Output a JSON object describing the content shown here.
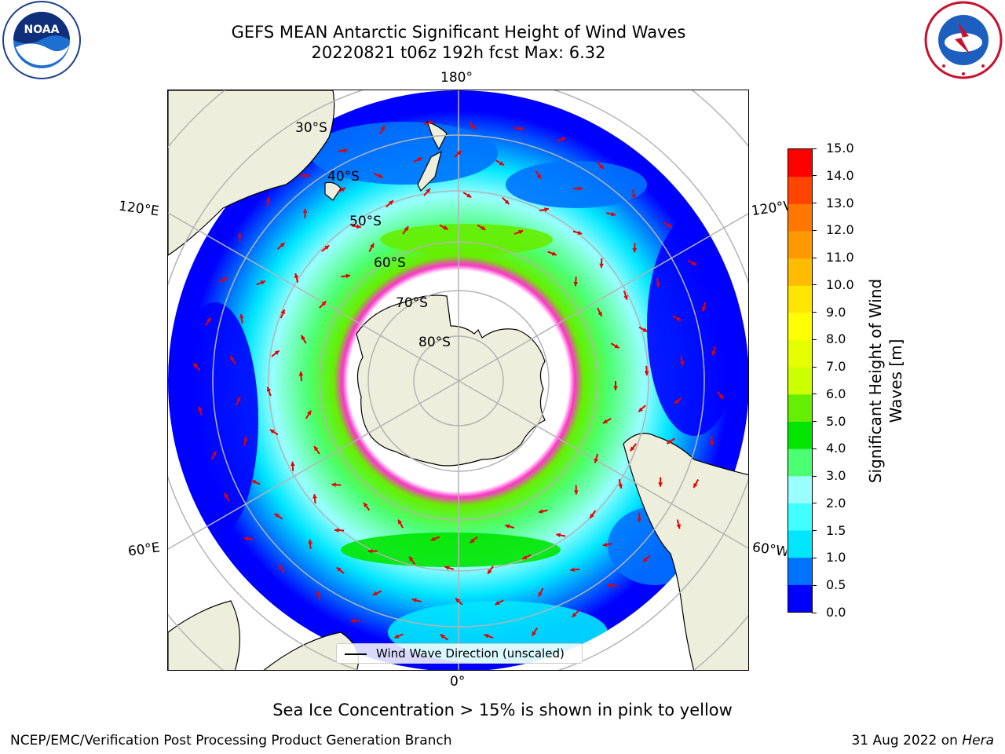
{
  "title": {
    "line1": "GEFS MEAN Antarctic Significant Height of Wind Waves",
    "line2": "20220821 t06z 192h fcst   Max: 6.32"
  },
  "logos": {
    "left": {
      "text": "NOAA",
      "ring_top": "NATIONAL OCEANIC AND ATMOSPHERIC ADMINISTRATION",
      "ring_bottom": "U.S. DEPARTMENT OF COMMERCE"
    },
    "right": {
      "ring_top": "NATIONAL WEATHER SERVICE"
    }
  },
  "map": {
    "projection": "south-polar-stereographic",
    "longitude_labels": {
      "top": "180°",
      "bottom": "0°",
      "left_upper": "120°E",
      "left_lower": "60°E",
      "right_upper": "120°W",
      "right_lower": "60°W"
    },
    "latitude_labels": [
      "30°S",
      "40°S",
      "50°S",
      "60°S",
      "70°S",
      "80°S"
    ],
    "colors": {
      "land": "#eeeedc",
      "ice_free_ocean_missing": "#ffffff",
      "graticule": "#b4b4b4",
      "arrow": "#e60000",
      "sea_ice": "#ff33cc"
    }
  },
  "colorbar": {
    "label": "Significant Height of Wind Waves [m]",
    "label_line1": "Significant Height of Wind",
    "label_line2": "Waves [m]",
    "ticks": [
      "0.0",
      "0.5",
      "1.0",
      "1.5",
      "2.0",
      "3.0",
      "4.0",
      "5.0",
      "6.0",
      "7.0",
      "8.0",
      "9.0",
      "10.0",
      "11.0",
      "12.0",
      "13.0",
      "14.0",
      "15.0"
    ],
    "colors": [
      "#0000ff",
      "#0073ff",
      "#00e6ff",
      "#40ffff",
      "#99ffff",
      "#4dff73",
      "#00e600",
      "#66ee00",
      "#ccff00",
      "#e6ff00",
      "#ffff00",
      "#ffe600",
      "#ffbb00",
      "#ff9900",
      "#ff7700",
      "#ff4400",
      "#ff0000"
    ]
  },
  "legend": {
    "label": "Wind Wave Direction (unscaled)"
  },
  "note": "Sea Ice Concentration > 15% is shown in pink to yellow",
  "footer": {
    "left": "NCEP/EMC/Verification Post Processing Product Generation Branch",
    "right_date": "31 Aug 2022 on ",
    "right_host": "Hera"
  }
}
